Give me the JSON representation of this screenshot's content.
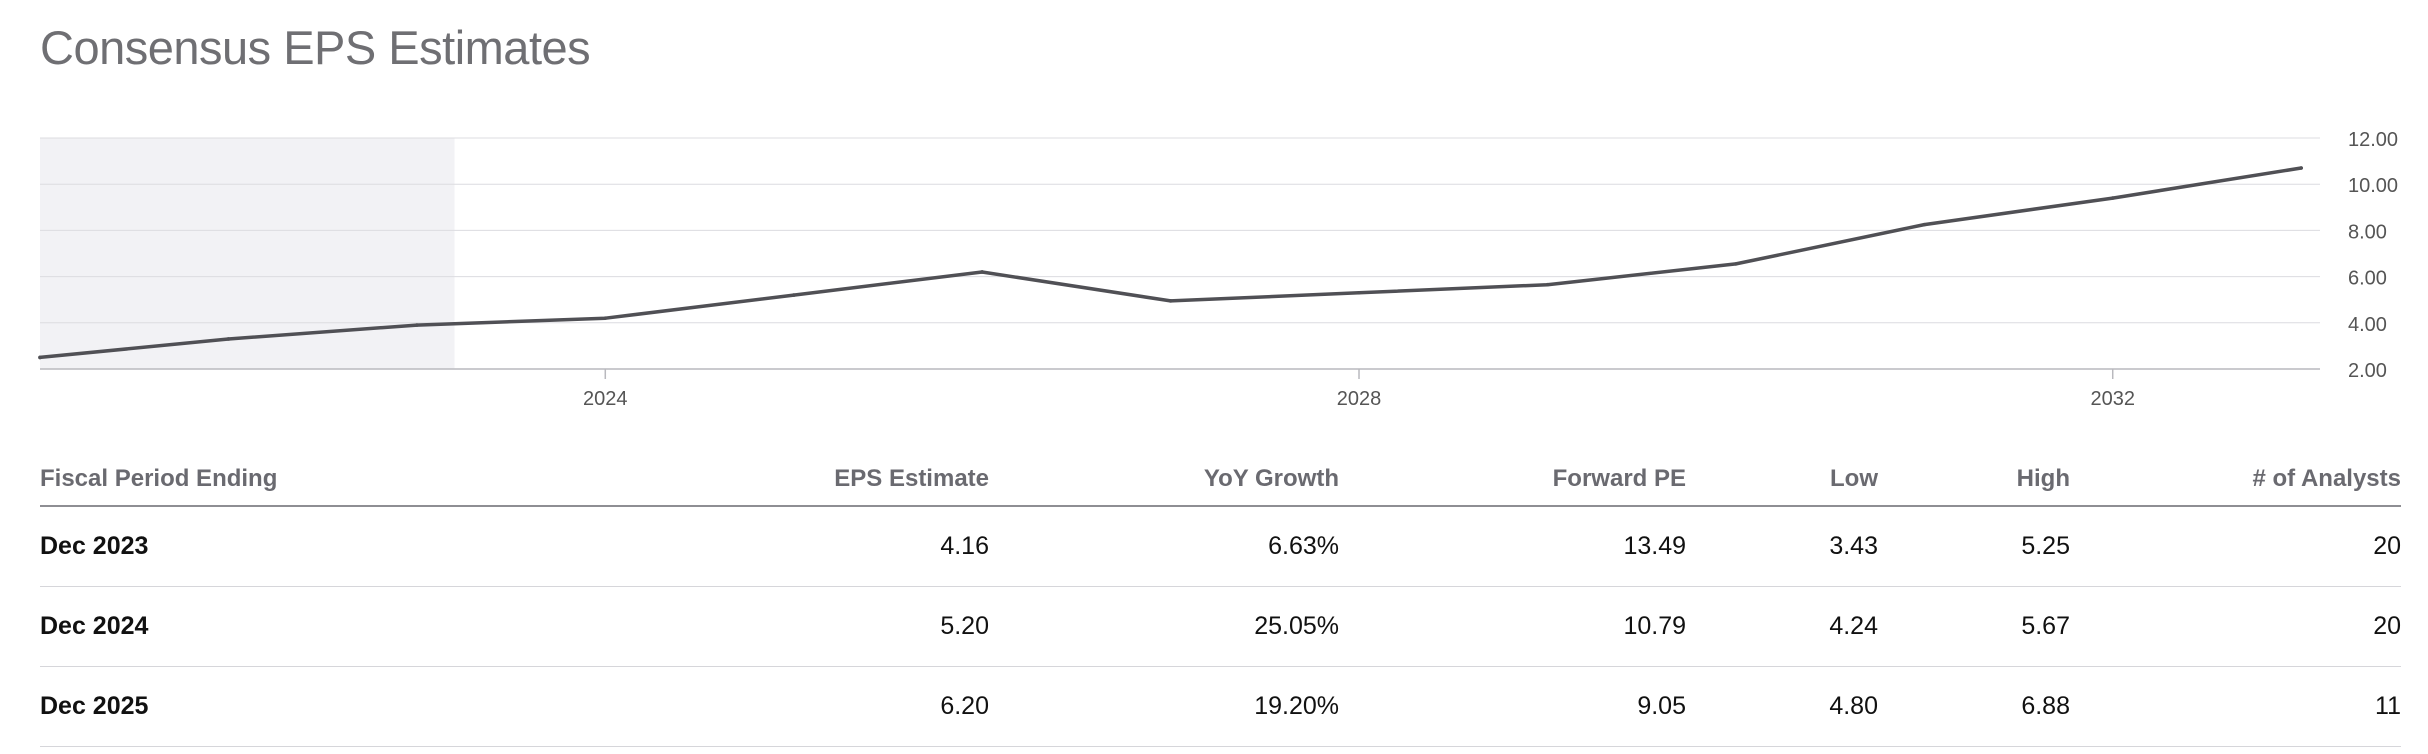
{
  "title": "Consensus EPS Estimates",
  "chart_data": {
    "type": "line",
    "title": "",
    "xlabel": "",
    "ylabel": "",
    "x_ticks": [
      "2024",
      "2028",
      "2032"
    ],
    "y_ticks": [
      "2.00",
      "4.00",
      "6.00",
      "8.00",
      "10.00",
      "12.00"
    ],
    "ylim": [
      2,
      12
    ],
    "xlim": [
      2021,
      2033.1
    ],
    "grid": true,
    "shaded_region": {
      "x_start": 2021,
      "x_end": 2023.2,
      "color": "#f2f2f5"
    },
    "line_color": "#505055",
    "series": [
      {
        "points": [
          {
            "x": 2021.0,
            "y": 2.5
          },
          {
            "x": 2022.0,
            "y": 3.3
          },
          {
            "x": 2023.0,
            "y": 3.9
          },
          {
            "x": 2024.0,
            "y": 4.2
          },
          {
            "x": 2025.0,
            "y": 5.2
          },
          {
            "x": 2026.0,
            "y": 6.2
          },
          {
            "x": 2027.0,
            "y": 4.95
          },
          {
            "x": 2028.0,
            "y": 5.3
          },
          {
            "x": 2029.0,
            "y": 5.65
          },
          {
            "x": 2030.0,
            "y": 6.55
          },
          {
            "x": 2031.0,
            "y": 8.25
          },
          {
            "x": 2032.0,
            "y": 9.4
          },
          {
            "x": 2033.0,
            "y": 10.7
          }
        ]
      }
    ]
  },
  "table": {
    "headers": {
      "period": "Fiscal Period Ending",
      "eps": "EPS Estimate",
      "yoy": "YoY Growth",
      "pe": "Forward PE",
      "low": "Low",
      "high": "High",
      "analysts": "# of Analysts"
    },
    "rows": [
      {
        "period": "Dec 2023",
        "eps": "4.16",
        "yoy": "6.63%",
        "pe": "13.49",
        "low": "3.43",
        "high": "5.25",
        "analysts": "20"
      },
      {
        "period": "Dec 2024",
        "eps": "5.20",
        "yoy": "25.05%",
        "pe": "10.79",
        "low": "4.24",
        "high": "5.67",
        "analysts": "20"
      },
      {
        "period": "Dec 2025",
        "eps": "6.20",
        "yoy": "19.20%",
        "pe": "9.05",
        "low": "4.80",
        "high": "6.88",
        "analysts": "11"
      }
    ]
  }
}
